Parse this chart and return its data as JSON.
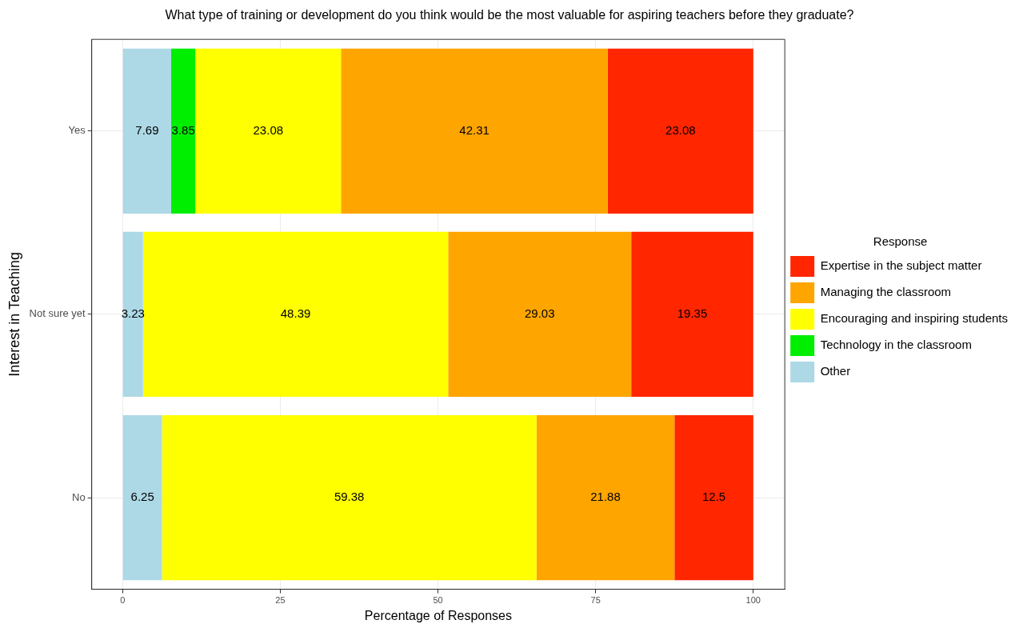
{
  "chart_data": {
    "type": "bar",
    "orientation": "horizontal",
    "stacked": true,
    "title": "What type of training or development do you think would be the most valuable for aspiring teachers before they graduate?",
    "xlabel": "Percentage of Responses",
    "ylabel": "Interest in Teaching",
    "legend_title": "Response",
    "categories": [
      "Yes",
      "Not sure yet",
      "No"
    ],
    "series": [
      {
        "name": "Other",
        "color": "#add8e6",
        "values": [
          7.69,
          3.23,
          6.25
        ]
      },
      {
        "name": "Technology in the classroom",
        "color": "#00ee00",
        "values": [
          3.85,
          null,
          null
        ]
      },
      {
        "name": "Encouraging and inspiring students",
        "color": "#ffff00",
        "values": [
          23.08,
          48.39,
          59.38
        ]
      },
      {
        "name": "Managing the classroom",
        "color": "#ffa500",
        "values": [
          42.31,
          29.03,
          21.88
        ]
      },
      {
        "name": "Expertise in the subject matter",
        "color": "#ff2600",
        "values": [
          23.08,
          19.35,
          12.5
        ]
      }
    ],
    "xlim": [
      -4.9,
      105
    ],
    "xticks": [
      0,
      25,
      50,
      75,
      100
    ],
    "grid": true,
    "legend": "right",
    "data_labels": true
  }
}
